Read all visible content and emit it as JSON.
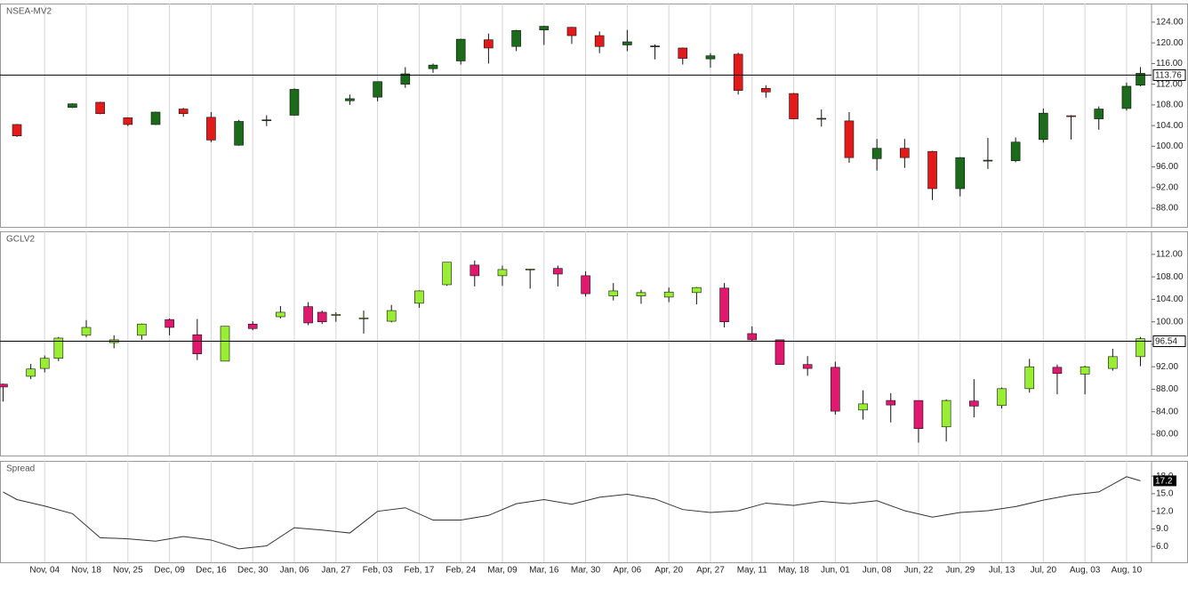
{
  "chart_data": [
    {
      "type": "candlestick",
      "title": "NSEA-MV2",
      "up_color": "#1b6b1b",
      "down_color": "#e31a1a",
      "x": [
        0,
        2,
        3,
        4,
        5,
        6,
        7,
        8,
        9,
        10,
        12,
        13,
        14,
        15,
        16,
        17,
        18,
        19,
        20,
        21,
        22,
        23,
        24,
        25,
        26,
        27,
        28,
        29,
        30,
        31,
        32,
        33,
        34,
        35,
        36,
        37,
        38,
        39,
        40,
        40.5
      ],
      "open": [
        104.2,
        107.5,
        108.5,
        105.5,
        104.2,
        107.2,
        105.6,
        100.2,
        105.0,
        106.0,
        108.8,
        109.5,
        112.0,
        115.0,
        116.5,
        120.6,
        119.3,
        122.5,
        123.0,
        121.4,
        119.6,
        119.3,
        119.0,
        116.9,
        117.8,
        111.2,
        110.2,
        105.3,
        104.9,
        97.6,
        99.6,
        99.0,
        91.8,
        97.2,
        97.2,
        101.3,
        105.9,
        105.3,
        107.3,
        111.8
      ],
      "high": [
        104.3,
        108.3,
        108.6,
        105.6,
        106.7,
        107.4,
        106.6,
        105.1,
        106.0,
        111.2,
        110.0,
        112.5,
        115.3,
        116.0,
        120.8,
        121.8,
        122.5,
        123.3,
        123.1,
        122.2,
        122.5,
        119.7,
        119.1,
        118.0,
        118.1,
        111.8,
        110.3,
        107.1,
        106.6,
        101.4,
        101.4,
        99.1,
        97.9,
        101.6,
        101.7,
        107.3,
        106.0,
        107.7,
        112.3,
        115.3
      ],
      "low": [
        101.8,
        107.4,
        106.2,
        103.9,
        104.1,
        105.7,
        100.8,
        100.1,
        103.9,
        105.9,
        108.0,
        108.7,
        111.3,
        114.2,
        115.8,
        116.0,
        118.4,
        119.6,
        119.8,
        118.0,
        118.4,
        116.8,
        115.8,
        115.2,
        110.0,
        109.4,
        105.2,
        103.8,
        96.8,
        95.3,
        95.8,
        89.6,
        90.3,
        95.6,
        96.9,
        100.7,
        101.3,
        103.2,
        106.9,
        111.6
      ],
      "close": [
        102.0,
        108.2,
        106.3,
        104.2,
        106.6,
        106.3,
        101.2,
        104.8,
        105.1,
        111.0,
        109.2,
        112.5,
        114.0,
        115.7,
        120.7,
        119.0,
        122.4,
        123.2,
        121.4,
        119.3,
        120.2,
        119.4,
        117.0,
        117.5,
        110.8,
        110.5,
        105.3,
        105.4,
        97.8,
        99.6,
        97.8,
        91.8,
        97.8,
        97.3,
        100.8,
        106.4,
        105.8,
        107.2,
        111.6,
        114.1
      ],
      "xlim": [
        -0.61,
        40.9
      ],
      "ylim": [
        84.4,
        127.6
      ],
      "yticks": [
        {
          "value": 88,
          "label": "88.00"
        },
        {
          "value": 92,
          "label": "92.00"
        },
        {
          "value": 96,
          "label": "96.00"
        },
        {
          "value": 100,
          "label": "100.00"
        },
        {
          "value": 104,
          "label": "104.00"
        },
        {
          "value": 108,
          "label": "108.00"
        },
        {
          "value": 112,
          "label": "112.00"
        },
        {
          "value": 116,
          "label": "116.00"
        },
        {
          "value": 120,
          "label": "120.00"
        },
        {
          "value": 124,
          "label": "124.00"
        }
      ],
      "hline": 113.76
    },
    {
      "type": "candlestick",
      "title": "GCLV2",
      "up_color": "#99ee33",
      "down_color": "#e0196e",
      "x": [
        -0.5,
        0.5,
        1,
        1.5,
        2.5,
        3.5,
        4.5,
        5.5,
        6.5,
        7.5,
        8.5,
        9.5,
        10.5,
        11,
        11.5,
        12.5,
        13.5,
        14.5,
        15.5,
        16.5,
        17.5,
        18.5,
        19.5,
        20.5,
        21.5,
        22.5,
        23.5,
        24.5,
        25.5,
        26.5,
        27.5,
        28.5,
        29.5,
        30.5,
        31.5,
        32.5,
        33.5,
        34.5,
        35.5,
        36.5,
        37.5,
        38.5,
        39.5,
        40.5
      ],
      "open": [
        88.9,
        90.3,
        91.7,
        93.5,
        97.6,
        96.3,
        97.6,
        100.4,
        97.7,
        93.0,
        99.6,
        100.9,
        102.7,
        101.7,
        101.2,
        100.6,
        100.1,
        103.3,
        106.6,
        110.1,
        108.2,
        109.3,
        109.5,
        108.2,
        104.6,
        104.6,
        104.4,
        105.2,
        106.0,
        97.9,
        96.8,
        92.4,
        91.9,
        84.3,
        86.0,
        86.0,
        81.3,
        85.9,
        85.1,
        88.1,
        91.9,
        90.7,
        91.7,
        93.8
      ],
      "high": [
        89.0,
        92.5,
        94.0,
        97.3,
        100.3,
        97.6,
        99.7,
        100.6,
        100.5,
        99.2,
        100.1,
        102.8,
        103.5,
        102.0,
        101.7,
        102.0,
        103.0,
        105.6,
        110.6,
        110.9,
        110.0,
        109.4,
        110.0,
        109.0,
        106.9,
        105.7,
        106.1,
        106.2,
        106.9,
        99.2,
        96.8,
        93.9,
        92.9,
        87.8,
        87.3,
        86.0,
        86.2,
        89.8,
        88.3,
        93.4,
        92.4,
        92.2,
        95.2,
        97.3
      ],
      "low": [
        85.8,
        89.8,
        91.0,
        93.0,
        97.3,
        95.3,
        96.8,
        97.6,
        93.2,
        93.0,
        98.5,
        100.6,
        99.4,
        99.6,
        100.0,
        97.9,
        99.9,
        102.5,
        106.4,
        106.3,
        106.4,
        105.9,
        106.3,
        104.5,
        103.8,
        103.2,
        103.5,
        103.1,
        99.0,
        96.6,
        92.4,
        90.4,
        83.5,
        82.6,
        82.1,
        78.5,
        78.7,
        83.0,
        84.6,
        87.4,
        87.1,
        87.1,
        91.3,
        92.1
      ],
      "close": [
        88.4,
        91.6,
        93.5,
        97.1,
        99.0,
        96.8,
        99.6,
        99.0,
        94.3,
        99.2,
        98.8,
        101.7,
        99.8,
        100.0,
        101.3,
        100.7,
        102.0,
        105.5,
        110.6,
        108.2,
        109.3,
        109.4,
        108.5,
        105.0,
        105.5,
        105.2,
        105.3,
        106.1,
        100.0,
        96.8,
        92.4,
        91.7,
        84.1,
        85.4,
        85.2,
        81.0,
        86.0,
        85.0,
        88.1,
        92.0,
        90.8,
        92.0,
        93.8,
        97.0
      ],
      "xlim": [
        -0.61,
        40.9
      ],
      "ylim": [
        76.2,
        116.1
      ],
      "yticks": [
        {
          "value": 80,
          "label": "80.00"
        },
        {
          "value": 84,
          "label": "84.00"
        },
        {
          "value": 88,
          "label": "88.00"
        },
        {
          "value": 92,
          "label": "92.00"
        },
        {
          "value": 96,
          "label": "96.00"
        },
        {
          "value": 100,
          "label": "100.00"
        },
        {
          "value": 104,
          "label": "104.00"
        },
        {
          "value": 108,
          "label": "108.00"
        },
        {
          "value": 112,
          "label": "112.00"
        }
      ],
      "hline": 96.54
    },
    {
      "type": "line",
      "title": "Spread",
      "color": "#333333",
      "x": [
        -0.5,
        0,
        1,
        2,
        3,
        4,
        5,
        6,
        7,
        8,
        9,
        10,
        11,
        12,
        13,
        14,
        15,
        16,
        17,
        18,
        19,
        20,
        21,
        22,
        23,
        24,
        25,
        26,
        27,
        28,
        29,
        30,
        31,
        32,
        33,
        34,
        35,
        36,
        37,
        38,
        39,
        40,
        40.5
      ],
      "values": [
        15.3,
        14.0,
        12.9,
        11.6,
        7.5,
        7.3,
        6.9,
        7.7,
        7.1,
        5.6,
        6.1,
        9.2,
        8.8,
        8.3,
        12.0,
        12.6,
        10.5,
        10.5,
        11.3,
        13.3,
        14.0,
        13.2,
        14.4,
        14.9,
        14.1,
        12.3,
        11.8,
        12.1,
        13.4,
        13.0,
        13.7,
        13.3,
        13.8,
        12.1,
        11.0,
        11.8,
        12.1,
        12.8,
        13.9,
        14.8,
        15.3,
        17.9,
        17.2
      ],
      "xlim": [
        -0.61,
        40.9
      ],
      "ylim": [
        3.3,
        20.6
      ],
      "yticks": [
        {
          "value": 6,
          "label": "6.0"
        },
        {
          "value": 9,
          "label": "9.0"
        },
        {
          "value": 12,
          "label": "12.0"
        },
        {
          "value": 15,
          "label": "15.0"
        },
        {
          "value": 18,
          "label": "18.0"
        }
      ],
      "last_value": 17.2,
      "grid": true,
      "xticks": [
        {
          "value": 1,
          "label": "Nov, 04"
        },
        {
          "value": 2.5,
          "label": "Nov, 18"
        },
        {
          "value": 4,
          "label": "Nov, 25"
        },
        {
          "value": 5.5,
          "label": "Dec, 09"
        },
        {
          "value": 7,
          "label": "Dec, 16"
        },
        {
          "value": 8.5,
          "label": "Dec, 30"
        },
        {
          "value": 10,
          "label": "Jan, 06"
        },
        {
          "value": 11.5,
          "label": "Jan, 27"
        },
        {
          "value": 13,
          "label": "Feb, 03"
        },
        {
          "value": 14.5,
          "label": "Feb, 17"
        },
        {
          "value": 16,
          "label": "Feb, 24"
        },
        {
          "value": 17.5,
          "label": "Mar, 09"
        },
        {
          "value": 19,
          "label": "Mar, 16"
        },
        {
          "value": 20.5,
          "label": "Mar, 30"
        },
        {
          "value": 22,
          "label": "Apr, 06"
        },
        {
          "value": 23.5,
          "label": "Apr, 20"
        },
        {
          "value": 25,
          "label": "Apr, 27"
        },
        {
          "value": 26.5,
          "label": "May, 11"
        },
        {
          "value": 28,
          "label": "May, 18"
        },
        {
          "value": 29.5,
          "label": "Jun, 01"
        },
        {
          "value": 31,
          "label": "Jun, 08"
        },
        {
          "value": 32.5,
          "label": "Jun, 22"
        },
        {
          "value": 34,
          "label": "Jun, 29"
        },
        {
          "value": 35.5,
          "label": "Jul, 13"
        },
        {
          "value": 37,
          "label": "Jul, 20"
        },
        {
          "value": 38.5,
          "label": "Aug, 03"
        },
        {
          "value": 40,
          "label": "Aug, 10"
        }
      ]
    }
  ]
}
